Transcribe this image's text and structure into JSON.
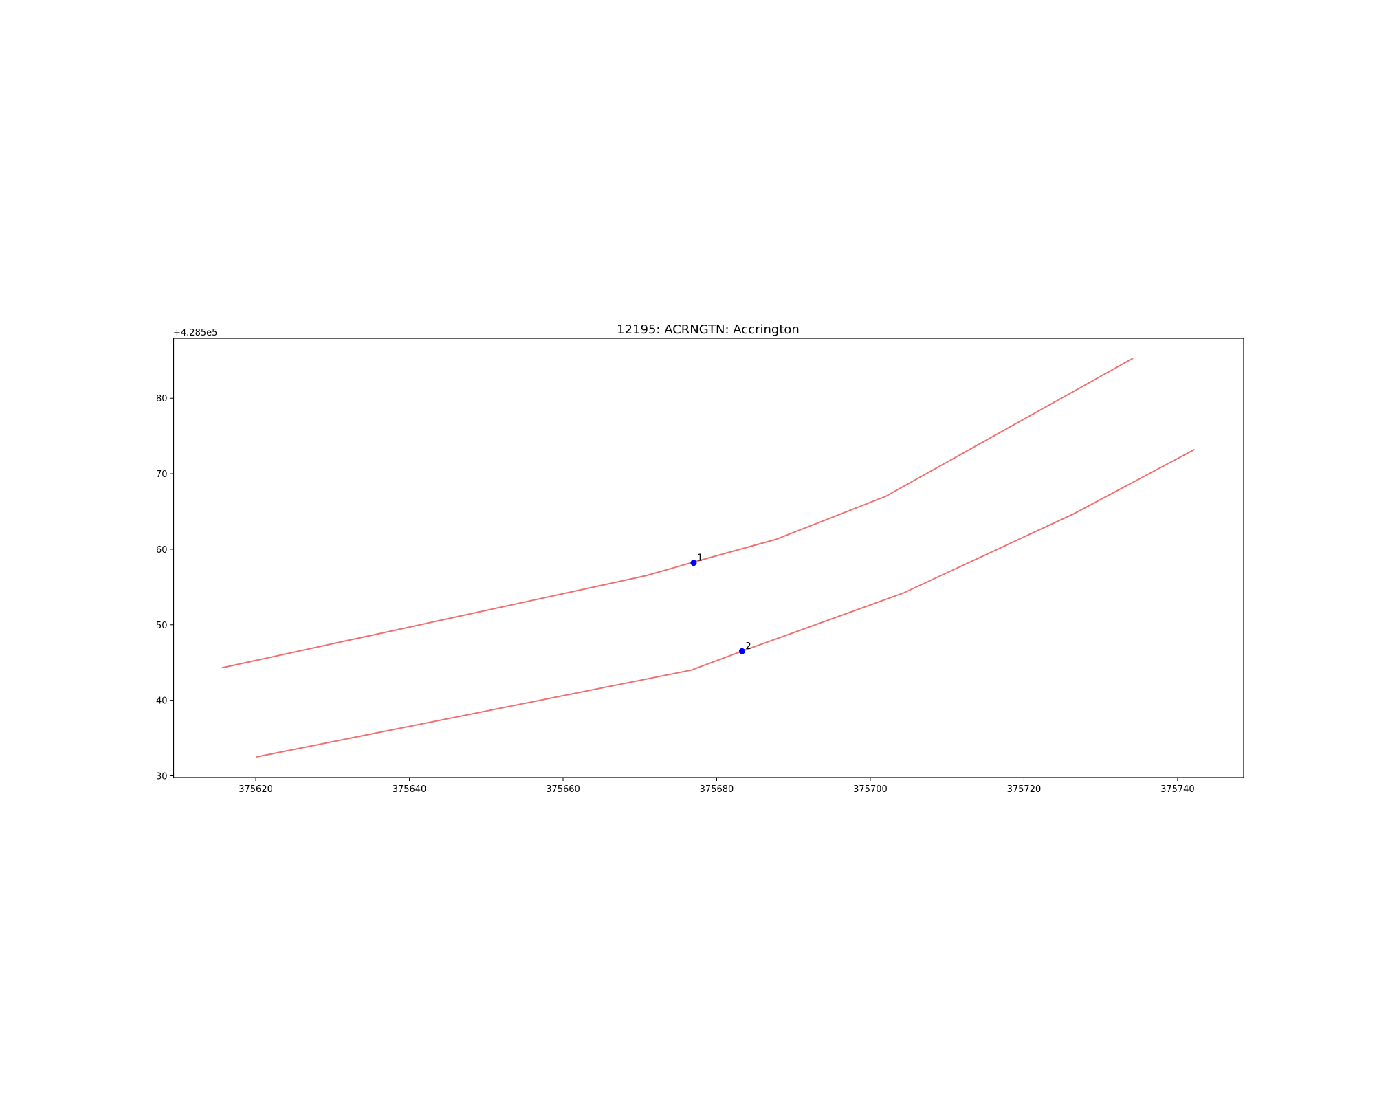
{
  "chart_data": {
    "type": "line",
    "title": "12195: ACRNGTN: Accrington",
    "y_offset_label": "+4.285e5",
    "xlim": [
      375609.3,
      375748.6
    ],
    "ylim": [
      29.77,
      87.94
    ],
    "xticks": [
      375620,
      375640,
      375660,
      375680,
      375700,
      375720,
      375740
    ],
    "yticks": [
      30,
      40,
      50,
      60,
      70,
      80
    ],
    "grid": false,
    "series": [
      {
        "color": "#f07070",
        "x": [
          375615.6,
          375670.8,
          375677.0,
          375687.7,
          375702.0,
          375734.2
        ],
        "values": [
          44.3,
          56.5,
          58.3,
          61.3,
          67.0,
          85.3
        ]
      },
      {
        "color": "#f07070",
        "x": [
          375620.1,
          375676.7,
          375683.3,
          375704.3,
          375726.5,
          375742.2
        ],
        "values": [
          32.5,
          44.0,
          46.5,
          54.2,
          64.7,
          73.2
        ]
      }
    ],
    "points": {
      "color": "#0000ff",
      "x": [
        375677.0,
        375683.3
      ],
      "values": [
        58.2,
        46.5
      ],
      "labels": [
        "1",
        "2"
      ]
    }
  }
}
